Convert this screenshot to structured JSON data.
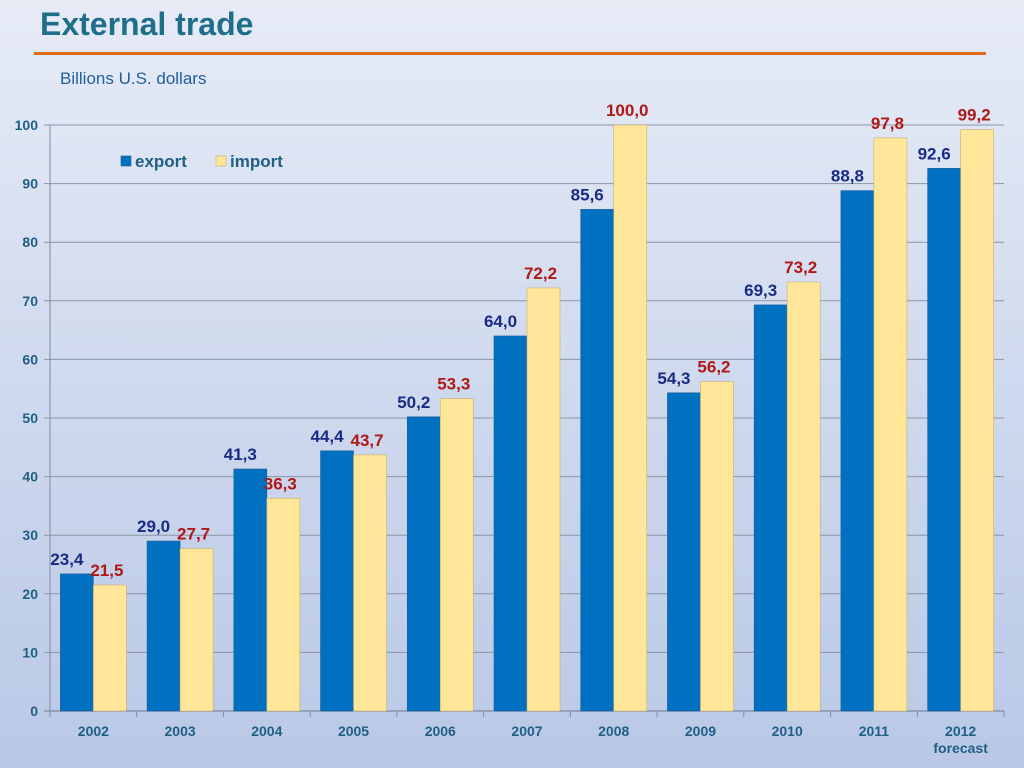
{
  "slide": {
    "title": "External trade",
    "subtitle": "Billions U.S. dollars"
  },
  "colors": {
    "export": "#0070c0",
    "import": "#ffe699",
    "export_label": "#1a2b86",
    "import_label": "#b01818",
    "axis_text": "#1f5f84",
    "title": "#1f6f8b",
    "rule": "#e06a1c"
  },
  "chart_data": {
    "type": "bar",
    "title": "",
    "xlabel": "",
    "ylabel": "",
    "categories": [
      "2002",
      "2003",
      "2004",
      "2005",
      "2006",
      "2007",
      "2008",
      "2009",
      "2010",
      "2011",
      "2012"
    ],
    "category_sublabels": [
      "",
      "",
      "",
      "",
      "",
      "",
      "",
      "",
      "",
      "",
      "forecast"
    ],
    "series": [
      {
        "name": "export",
        "values": [
          23.4,
          29.0,
          41.3,
          44.4,
          50.2,
          64.0,
          85.6,
          54.3,
          69.3,
          88.8,
          92.6
        ]
      },
      {
        "name": "import",
        "values": [
          21.5,
          27.7,
          36.3,
          43.7,
          53.3,
          72.2,
          100.0,
          56.2,
          73.2,
          97.8,
          99.2
        ]
      }
    ],
    "data_labels": {
      "export": [
        "23,4",
        "29,0",
        "41,3",
        "44,4",
        "50,2",
        "64,0",
        "85,6",
        "54,3",
        "69,3",
        "88,8",
        "92,6"
      ],
      "import": [
        "21,5",
        "27,7",
        "36,3",
        "43,7",
        "53,3",
        "72,2",
        "100,0",
        "56,2",
        "73,2",
        "97,8",
        "99,2"
      ]
    },
    "ylim": [
      0,
      100
    ],
    "yticks": [
      0,
      10,
      20,
      30,
      40,
      50,
      60,
      70,
      80,
      90,
      100
    ],
    "grid": true,
    "legend_position": "top-left"
  }
}
